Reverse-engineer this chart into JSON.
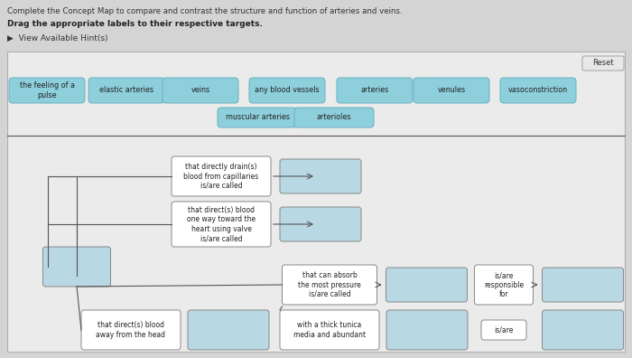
{
  "bg_color": "#d0d0d0",
  "panel_bg": "#ebebeb",
  "teal_color": "#8ecfdc",
  "empty_color": "#b8d8e4",
  "desc_bg": "#ffffff",
  "line_color": "#555555",
  "header1": "Complete the Concept Map to compare and contrast the structure and function of arteries and veins.",
  "header2": "Drag the appropriate labels to their respective targets.",
  "header3": "▶  View Available Hint(s)",
  "label_row1": [
    "the feeling of a\npulse",
    "elastic arteries",
    "veins",
    "any blood vessels",
    "arteries",
    "venules",
    "vasoconstriction"
  ],
  "label_row2": [
    "muscular arteries",
    "arterioles"
  ]
}
